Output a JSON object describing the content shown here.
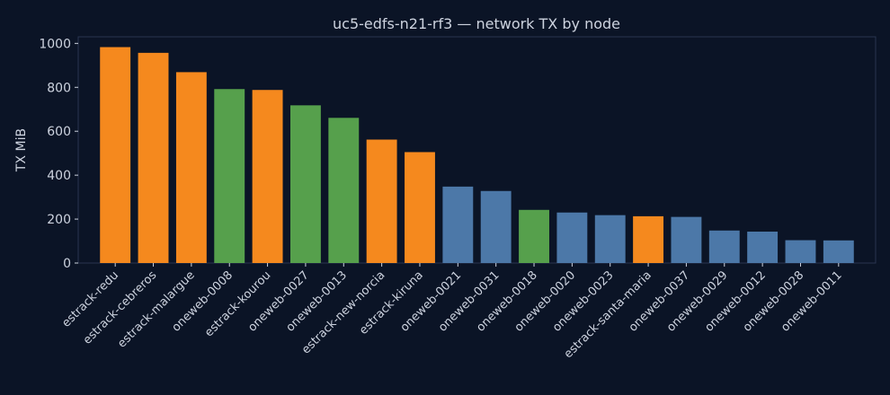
{
  "chart_data": {
    "type": "bar",
    "title": "uc5-edfs-n21-rf3 — network TX by node",
    "xlabel": "",
    "ylabel": "TX MiB",
    "ylim": [
      0,
      1030
    ],
    "yticks": [
      0,
      200,
      400,
      600,
      800,
      1000
    ],
    "grid": false,
    "legend": "none",
    "categories": [
      "estrack-redu",
      "estrack-cebreros",
      "estrack-malargue",
      "oneweb-0008",
      "estrack-kourou",
      "oneweb-0027",
      "oneweb-0013",
      "estrack-new-norcia",
      "estrack-kiruna",
      "oneweb-0021",
      "oneweb-0031",
      "oneweb-0018",
      "oneweb-0020",
      "oneweb-0023",
      "estrack-santa-maria",
      "oneweb-0037",
      "oneweb-0029",
      "oneweb-0012",
      "oneweb-0028",
      "oneweb-0011"
    ],
    "values": [
      983,
      957,
      869,
      792,
      788,
      718,
      661,
      562,
      505,
      348,
      328,
      242,
      230,
      218,
      213,
      210,
      148,
      143,
      104,
      103
    ],
    "bar_colors": [
      "#f5891e",
      "#f5891e",
      "#f5891e",
      "#56a04c",
      "#f5891e",
      "#56a04c",
      "#56a04c",
      "#f5891e",
      "#f5891e",
      "#4c78a8",
      "#4c78a8",
      "#56a04c",
      "#4c78a8",
      "#4c78a8",
      "#f5891e",
      "#4c78a8",
      "#4c78a8",
      "#4c78a8",
      "#4c78a8",
      "#4c78a8"
    ]
  },
  "colors": {
    "background": "#0b1426",
    "plot_border": "#2a3550",
    "text": "#cdd3df"
  }
}
